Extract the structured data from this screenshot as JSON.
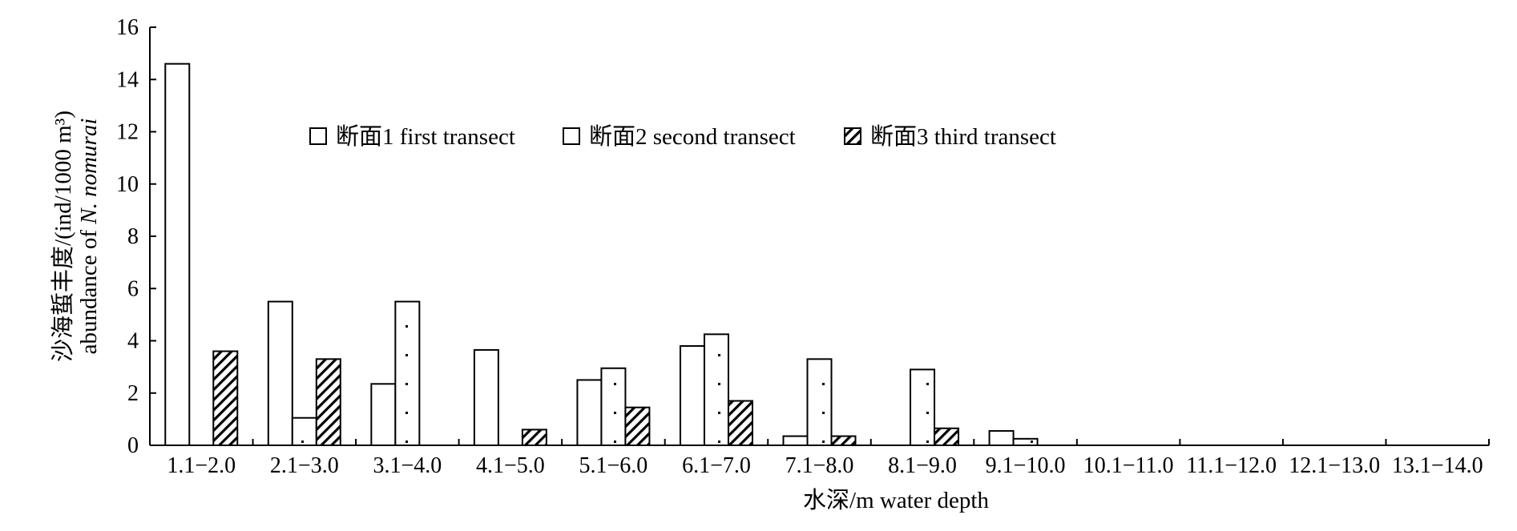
{
  "chart_data": {
    "type": "bar",
    "title": "",
    "xlabel": "水深/m water depth",
    "ylabel_line1": "沙海蜇丰度/(ind/1000 m³)",
    "ylabel_line2_prefix": "abundance of ",
    "ylabel_line2_species": "N. nomurai",
    "ylim": [
      0,
      16
    ],
    "yticks": [
      0,
      2,
      4,
      6,
      8,
      10,
      12,
      14,
      16
    ],
    "grid": false,
    "legend_position": "top-center",
    "categories": [
      "1.1−2.0",
      "2.1−3.0",
      "3.1−4.0",
      "4.1−5.0",
      "5.1−6.0",
      "6.1−7.0",
      "7.1−8.0",
      "8.1−9.0",
      "9.1−10.0",
      "10.1−11.0",
      "11.1−12.0",
      "12.1−13.0",
      "13.1−14.0"
    ],
    "series": [
      {
        "name": "断面1 first transect",
        "pattern": "blank",
        "values": [
          14.6,
          5.5,
          2.35,
          3.65,
          2.5,
          3.8,
          0.35,
          0,
          0.55,
          0,
          0,
          0,
          0
        ]
      },
      {
        "name": "断面2 second transect",
        "pattern": "dots",
        "values": [
          0,
          1.05,
          5.5,
          0,
          2.95,
          4.25,
          3.3,
          2.9,
          0.25,
          0,
          0,
          0,
          0
        ]
      },
      {
        "name": "断面3 third transect",
        "pattern": "hatch",
        "values": [
          3.6,
          3.3,
          0,
          0.6,
          1.45,
          1.7,
          0.35,
          0.65,
          0,
          0,
          0,
          0,
          0
        ]
      }
    ]
  }
}
